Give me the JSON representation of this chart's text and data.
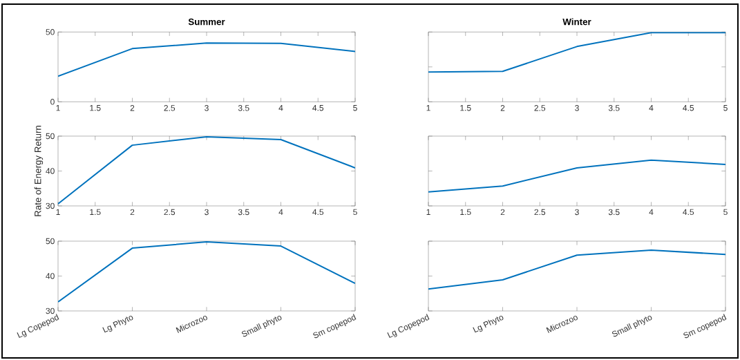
{
  "chart_data": [
    {
      "type": "line",
      "title": "Summer",
      "x": [
        1,
        2,
        3,
        4,
        5
      ],
      "xlim": [
        1,
        5
      ],
      "xticks": [
        1,
        1.5,
        2,
        2.5,
        3,
        3.5,
        4,
        4.5,
        5
      ],
      "ylim": [
        0,
        50
      ],
      "yticks": [
        0,
        50
      ],
      "color": "#0072bd",
      "values": [
        18.3,
        38.1,
        42.1,
        41.9,
        36.1
      ]
    },
    {
      "type": "line",
      "title": "Winter",
      "x": [
        1,
        2,
        3,
        4,
        5
      ],
      "xlim": [
        1,
        5
      ],
      "xticks": [
        1,
        1.5,
        2,
        2.5,
        3,
        3.5,
        4,
        4.5,
        5
      ],
      "ylim": [
        0,
        50
      ],
      "yticks": [
        0,
        25,
        50
      ],
      "tick_labels": "x",
      "color": "#0072bd",
      "values": [
        21.3,
        21.8,
        39.6,
        49.5,
        49.5
      ]
    },
    {
      "type": "line",
      "ylabel": "Rate of Energy Return",
      "x": [
        1,
        2,
        3,
        4,
        5
      ],
      "xlim": [
        1,
        5
      ],
      "xticks": [
        1,
        1.5,
        2,
        2.5,
        3,
        3.5,
        4,
        4.5,
        5
      ],
      "ylim": [
        30,
        50
      ],
      "yticks": [
        30,
        40,
        50
      ],
      "color": "#0072bd",
      "values": [
        30.6,
        47.4,
        49.8,
        49.0,
        40.9
      ]
    },
    {
      "type": "line",
      "x": [
        1,
        2,
        3,
        4,
        5
      ],
      "xlim": [
        1,
        5
      ],
      "xticks": [
        1,
        1.5,
        2,
        2.5,
        3,
        3.5,
        4,
        4.5,
        5
      ],
      "ylim": [
        30,
        50
      ],
      "yticks": [
        30,
        40,
        50
      ],
      "tick_labels": "x",
      "color": "#0072bd",
      "values": [
        34.0,
        35.7,
        40.9,
        43.1,
        41.9
      ]
    },
    {
      "type": "line",
      "categories": [
        "Lg Copepod",
        "Lg Phyto",
        "Microzoo",
        "Small phyto",
        "Sm copepod"
      ],
      "ylim": [
        30,
        50
      ],
      "yticks": [
        30,
        40,
        50
      ],
      "color": "#0072bd",
      "values": [
        32.6,
        48.0,
        49.8,
        48.6,
        37.9
      ]
    },
    {
      "type": "line",
      "categories": [
        "Lg Copepod",
        "Lg Phyto",
        "Microzoo",
        "Small phyto",
        "Sm copepod"
      ],
      "ylim": [
        30,
        50
      ],
      "yticks": [
        30,
        40,
        50
      ],
      "tick_labels": "x",
      "color": "#0072bd",
      "values": [
        36.3,
        38.9,
        46.0,
        47.4,
        46.2
      ]
    }
  ]
}
